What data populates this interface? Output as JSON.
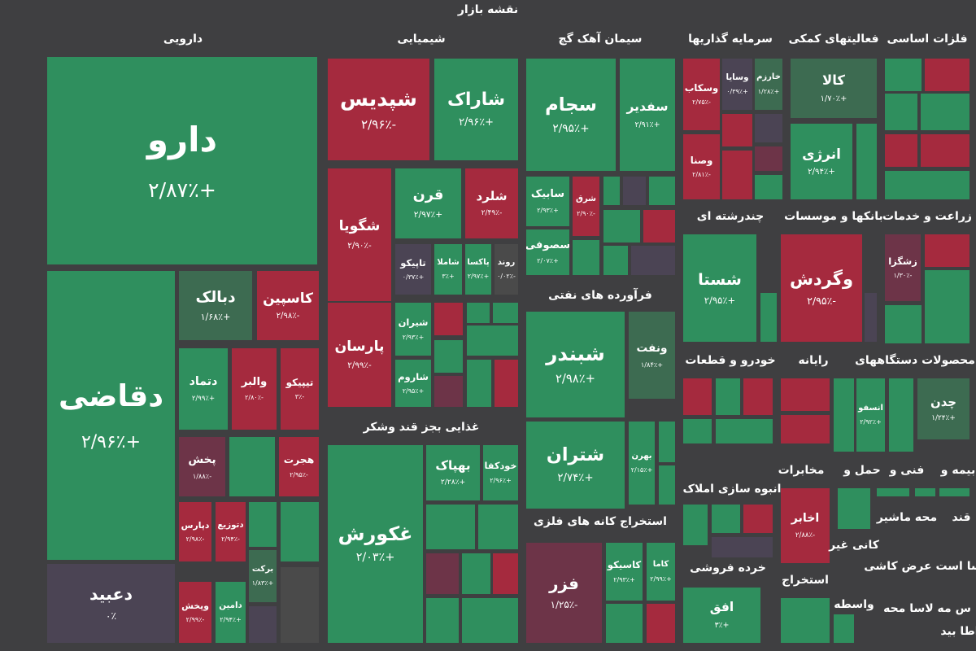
{
  "header": {
    "title": "نقشه بازار"
  },
  "sectors": [
    {
      "title": "دارویی"
    },
    {
      "title": "شیمیایی"
    },
    {
      "title": "سیمان آهک گچ"
    },
    {
      "title": "سرمایه گذاریها"
    },
    {
      "title": "فعالیتهای کمکی"
    },
    {
      "title": "فلزات اساسی"
    },
    {
      "title": "فرآورده های نفتی"
    },
    {
      "title": "غذایی بجز قند وشکر"
    },
    {
      "title": "استخراج کانه های فلزی"
    },
    {
      "title": "چندرشته ای"
    },
    {
      "title": "بانکها و موسسات"
    },
    {
      "title": "زراعت و خدمات"
    },
    {
      "title": "خودرو و قطعات"
    },
    {
      "title": "رایانه"
    },
    {
      "title": "محصولات دستگاههای"
    },
    {
      "title": "انبوه سازی املاک"
    },
    {
      "title": "مخابرات"
    },
    {
      "title": "حمل و"
    },
    {
      "title": "فنی و"
    },
    {
      "title": "بیمه و"
    },
    {
      "title": "خرده فروشی"
    },
    {
      "title": "استخراج"
    },
    {
      "title": "قند"
    },
    {
      "title": "محه ماشیر"
    },
    {
      "title": "کانی غیر"
    },
    {
      "title": "سا است عرض کاشی"
    },
    {
      "title": "واسطه"
    },
    {
      "title": "س مه لاسا محه"
    },
    {
      "title": "اطا بید"
    }
  ],
  "tiles": [
    {
      "name": "دارو",
      "change": "+۲/۸۷٪"
    },
    {
      "name": "دقاضی",
      "change": "+۲/۹۶٪"
    },
    {
      "name": "دعبید",
      "change": "۰٪"
    },
    {
      "name": "دبالک",
      "change": "+۱/۶۸٪"
    },
    {
      "name": "کاسپین",
      "change": "-۲/۹۸٪"
    },
    {
      "name": "دتماد",
      "change": "+۲/۹۹٪"
    },
    {
      "name": "والبر",
      "change": "-۲/۸۰٪"
    },
    {
      "name": "تیپیکو",
      "change": "-۳٪"
    },
    {
      "name": "پخش",
      "change": "-۱/۸۸٪"
    },
    {
      "name": "هجرت",
      "change": "-۲/۹۵٪"
    },
    {
      "name": "دپارس",
      "change": "-۲/۹۸٪"
    },
    {
      "name": "دتوزیع",
      "change": "-۲/۹۴٪"
    },
    {
      "name": "برکت",
      "change": "+۱/۸۳٪"
    },
    {
      "name": "وپخش",
      "change": "-۲/۹۹٪"
    },
    {
      "name": "دامین",
      "change": "+۲/۹۴٪"
    },
    {
      "name": "شپدیس",
      "change": "-۲/۹۶٪"
    },
    {
      "name": "شاراک",
      "change": "+۲/۹۶٪"
    },
    {
      "name": "شگویا",
      "change": "-۲/۹۰٪"
    },
    {
      "name": "قرن",
      "change": "+۲/۹۷٪"
    },
    {
      "name": "شلرد",
      "change": "-۲/۴۹٪"
    },
    {
      "name": "تاپیکو",
      "change": "+۰/۳۷٪"
    },
    {
      "name": "شاملا",
      "change": "+۳٪"
    },
    {
      "name": "پاکسا",
      "change": "+۲/۹۷٪"
    },
    {
      "name": "روند",
      "change": "-۰/۰۲٪"
    },
    {
      "name": "پارسان",
      "change": "-۲/۹۹٪"
    },
    {
      "name": "شیران",
      "change": "+۲/۹۳٪"
    },
    {
      "name": "شاروم",
      "change": "+۲/۹۵٪"
    },
    {
      "name": "غکورش",
      "change": "+۲/۰۳٪"
    },
    {
      "name": "بهپاک",
      "change": "+۲/۲۸٪"
    },
    {
      "name": "خودکفا",
      "change": "+۲/۹۶٪"
    },
    {
      "name": "سجام",
      "change": "+۲/۹۵٪"
    },
    {
      "name": "سفدیر",
      "change": "+۲/۹۱٪"
    },
    {
      "name": "سابیک",
      "change": "+۲/۹۳٪"
    },
    {
      "name": "شرق",
      "change": "-۲/۹۰٪"
    },
    {
      "name": "سصوفی",
      "change": "+۲/۰۷٪"
    },
    {
      "name": "شبندر",
      "change": "+۲/۹۸٪"
    },
    {
      "name": "ونفت",
      "change": "+۱/۸۴٪"
    },
    {
      "name": "شتران",
      "change": "+۲/۷۴٪"
    },
    {
      "name": "بهرن",
      "change": "+۲/۱۵٪"
    },
    {
      "name": "فزر",
      "change": "-۱/۲۵٪"
    },
    {
      "name": "کاسیکو",
      "change": "+۲/۹۳٪"
    },
    {
      "name": "کاما",
      "change": "+۲/۹۹٪"
    },
    {
      "name": "وسکاب",
      "change": "-۲/۷۵٪"
    },
    {
      "name": "وسایا",
      "change": "+۰/۳۹٪"
    },
    {
      "name": "خارزم",
      "change": "+۱/۲۸٪"
    },
    {
      "name": "وصنا",
      "change": "-۲/۸۱٪"
    },
    {
      "name": "کالا",
      "change": "+۱/۷۰٪"
    },
    {
      "name": "انرژی",
      "change": "+۲/۹۴٪"
    },
    {
      "name": "شستا",
      "change": "+۲/۹۵٪"
    },
    {
      "name": "وگردش",
      "change": "-۲/۹۵٪"
    },
    {
      "name": "زشگزا",
      "change": "-۱/۳۰٪"
    },
    {
      "name": "انسفو",
      "change": "+۲/۹۲٪"
    },
    {
      "name": "چدن",
      "change": "+۱/۲۴٪"
    },
    {
      "name": "اخابر",
      "change": "-۲/۸۸٪"
    },
    {
      "name": "افق",
      "change": "+۳٪"
    }
  ]
}
